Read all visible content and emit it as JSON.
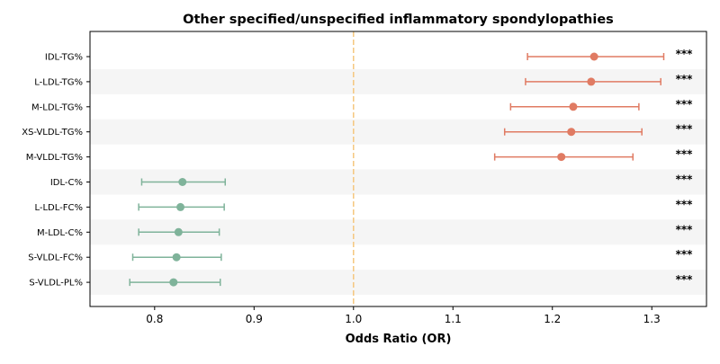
{
  "chart_data": {
    "type": "forest",
    "title": "Other specified/unspecified inflammatory spondylopathies",
    "xlabel": "Odds Ratio (OR)",
    "xlim": [
      0.735,
      1.355
    ],
    "xticks": [
      0.8,
      0.9,
      1.0,
      1.1,
      1.2,
      1.3
    ],
    "xtick_labels": [
      "0.8",
      "0.9",
      "1.0",
      "1.1",
      "1.2",
      "1.3"
    ],
    "reference_line": 1.0,
    "reference_line_color": "#f5c77e",
    "positive_color": "#e07b63",
    "negative_color": "#7fb39a",
    "band_color": "#f5f5f5",
    "rows": [
      {
        "label": "IDL-TG%",
        "or": 1.242,
        "lower": 1.175,
        "upper": 1.312,
        "sig": "***"
      },
      {
        "label": "L-LDL-TG%",
        "or": 1.239,
        "lower": 1.173,
        "upper": 1.309,
        "sig": "***"
      },
      {
        "label": "M-LDL-TG%",
        "or": 1.221,
        "lower": 1.158,
        "upper": 1.287,
        "sig": "***"
      },
      {
        "label": "XS-VLDL-TG%",
        "or": 1.219,
        "lower": 1.152,
        "upper": 1.29,
        "sig": "***"
      },
      {
        "label": "M-VLDL-TG%",
        "or": 1.209,
        "lower": 1.142,
        "upper": 1.281,
        "sig": "***"
      },
      {
        "label": "IDL-C%",
        "or": 0.828,
        "lower": 0.787,
        "upper": 0.871,
        "sig": "***"
      },
      {
        "label": "L-LDL-FC%",
        "or": 0.826,
        "lower": 0.784,
        "upper": 0.87,
        "sig": "***"
      },
      {
        "label": "M-LDL-C%",
        "or": 0.824,
        "lower": 0.784,
        "upper": 0.865,
        "sig": "***"
      },
      {
        "label": "S-VLDL-FC%",
        "or": 0.822,
        "lower": 0.778,
        "upper": 0.867,
        "sig": "***"
      },
      {
        "label": "S-VLDL-PL%",
        "or": 0.819,
        "lower": 0.775,
        "upper": 0.866,
        "sig": "***"
      }
    ]
  }
}
